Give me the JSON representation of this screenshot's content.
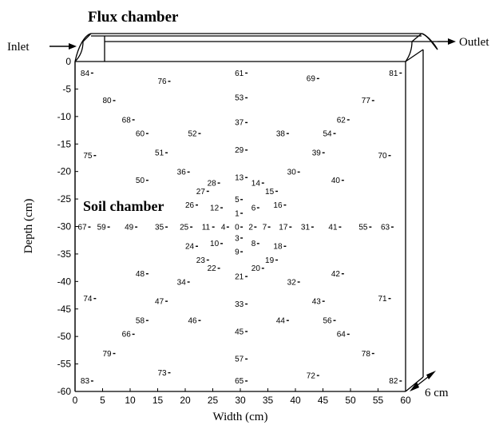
{
  "title": "Flux chamber",
  "inlet_label": "Inlet",
  "outlet_label": "Outlet",
  "soil_label": "Soil chamber",
  "depth_dim_label": "6 cm",
  "x_axis": {
    "label": "Width (cm)",
    "ticks": [
      0,
      5,
      10,
      15,
      20,
      25,
      30,
      35,
      40,
      45,
      50,
      55,
      60
    ]
  },
  "y_axis": {
    "label": "Depth (cm)",
    "ticks": [
      0,
      -5,
      -10,
      -15,
      -20,
      -25,
      -30,
      -35,
      -40,
      -45,
      -50,
      -55,
      -60
    ]
  },
  "sensors": [
    {
      "id": "84",
      "x": 1,
      "y": -2
    },
    {
      "id": "76",
      "x": 15,
      "y": -3.5
    },
    {
      "id": "61",
      "x": 29,
      "y": -2
    },
    {
      "id": "69",
      "x": 42,
      "y": -3
    },
    {
      "id": "81",
      "x": 57,
      "y": -2
    },
    {
      "id": "80",
      "x": 5,
      "y": -7
    },
    {
      "id": "53",
      "x": 29,
      "y": -6.5
    },
    {
      "id": "77",
      "x": 52,
      "y": -7
    },
    {
      "id": "68",
      "x": 8.5,
      "y": -10.5
    },
    {
      "id": "37",
      "x": 29,
      "y": -11
    },
    {
      "id": "62",
      "x": 47.5,
      "y": -10.5
    },
    {
      "id": "60",
      "x": 11,
      "y": -13
    },
    {
      "id": "52",
      "x": 20.5,
      "y": -13
    },
    {
      "id": "38",
      "x": 36.5,
      "y": -13
    },
    {
      "id": "54",
      "x": 45,
      "y": -13
    },
    {
      "id": "75",
      "x": 1.5,
      "y": -17
    },
    {
      "id": "51",
      "x": 14.5,
      "y": -16.5
    },
    {
      "id": "29",
      "x": 29,
      "y": -16
    },
    {
      "id": "39",
      "x": 43,
      "y": -16.5
    },
    {
      "id": "70",
      "x": 55,
      "y": -17
    },
    {
      "id": "36",
      "x": 18.5,
      "y": -20
    },
    {
      "id": "30",
      "x": 38.5,
      "y": -20
    },
    {
      "id": "50",
      "x": 11,
      "y": -21.5
    },
    {
      "id": "13",
      "x": 29,
      "y": -21
    },
    {
      "id": "28",
      "x": 24,
      "y": -22
    },
    {
      "id": "14",
      "x": 32,
      "y": -22
    },
    {
      "id": "40",
      "x": 46.5,
      "y": -21.5
    },
    {
      "id": "27",
      "x": 22,
      "y": -23.5
    },
    {
      "id": "15",
      "x": 34.5,
      "y": -23.5
    },
    {
      "id": "5",
      "x": 29,
      "y": -25
    },
    {
      "id": "26",
      "x": 20,
      "y": -26
    },
    {
      "id": "12",
      "x": 24.5,
      "y": -26.5
    },
    {
      "id": "6",
      "x": 32,
      "y": -26.5
    },
    {
      "id": "16",
      "x": 36,
      "y": -26
    },
    {
      "id": "1",
      "x": 29,
      "y": -27.5
    },
    {
      "id": "67",
      "x": 0.5,
      "y": -30
    },
    {
      "id": "59",
      "x": 4,
      "y": -30
    },
    {
      "id": "49",
      "x": 9,
      "y": -30
    },
    {
      "id": "35",
      "x": 14.5,
      "y": -30
    },
    {
      "id": "25",
      "x": 19,
      "y": -30
    },
    {
      "id": "11",
      "x": 23,
      "y": -30
    },
    {
      "id": "4",
      "x": 26.5,
      "y": -30
    },
    {
      "id": "0",
      "x": 29,
      "y": -30
    },
    {
      "id": "2",
      "x": 31.5,
      "y": -30
    },
    {
      "id": "7",
      "x": 34,
      "y": -30
    },
    {
      "id": "17",
      "x": 37,
      "y": -30
    },
    {
      "id": "31",
      "x": 41,
      "y": -30
    },
    {
      "id": "41",
      "x": 46,
      "y": -30
    },
    {
      "id": "55",
      "x": 51.5,
      "y": -30
    },
    {
      "id": "63",
      "x": 55.5,
      "y": -30
    },
    {
      "id": "3",
      "x": 29,
      "y": -32
    },
    {
      "id": "10",
      "x": 24.5,
      "y": -33
    },
    {
      "id": "24",
      "x": 20,
      "y": -33.5
    },
    {
      "id": "8",
      "x": 32,
      "y": -33
    },
    {
      "id": "18",
      "x": 36,
      "y": -33.5
    },
    {
      "id": "9",
      "x": 29,
      "y": -34.5
    },
    {
      "id": "23",
      "x": 22,
      "y": -36
    },
    {
      "id": "19",
      "x": 34.5,
      "y": -36
    },
    {
      "id": "22",
      "x": 24,
      "y": -37.5
    },
    {
      "id": "20",
      "x": 32,
      "y": -37.5
    },
    {
      "id": "48",
      "x": 11,
      "y": -38.5
    },
    {
      "id": "21",
      "x": 29,
      "y": -39
    },
    {
      "id": "42",
      "x": 46.5,
      "y": -38.5
    },
    {
      "id": "34",
      "x": 18.5,
      "y": -40
    },
    {
      "id": "32",
      "x": 38.5,
      "y": -40
    },
    {
      "id": "74",
      "x": 1.5,
      "y": -43
    },
    {
      "id": "47",
      "x": 14.5,
      "y": -43.5
    },
    {
      "id": "33",
      "x": 29,
      "y": -44
    },
    {
      "id": "43",
      "x": 43,
      "y": -43.5
    },
    {
      "id": "71",
      "x": 55,
      "y": -43
    },
    {
      "id": "58",
      "x": 11,
      "y": -47
    },
    {
      "id": "46",
      "x": 20.5,
      "y": -47
    },
    {
      "id": "44",
      "x": 36.5,
      "y": -47
    },
    {
      "id": "56",
      "x": 45,
      "y": -47
    },
    {
      "id": "66",
      "x": 8.5,
      "y": -49.5
    },
    {
      "id": "45",
      "x": 29,
      "y": -49
    },
    {
      "id": "64",
      "x": 47.5,
      "y": -49.5
    },
    {
      "id": "79",
      "x": 5,
      "y": -53
    },
    {
      "id": "57",
      "x": 29,
      "y": -54
    },
    {
      "id": "78",
      "x": 52,
      "y": -53
    },
    {
      "id": "73",
      "x": 15,
      "y": -56.5
    },
    {
      "id": "72",
      "x": 42,
      "y": -57
    },
    {
      "id": "83",
      "x": 1,
      "y": -58
    },
    {
      "id": "65",
      "x": 29,
      "y": -58
    },
    {
      "id": "82",
      "x": 57,
      "y": -58
    }
  ]
}
